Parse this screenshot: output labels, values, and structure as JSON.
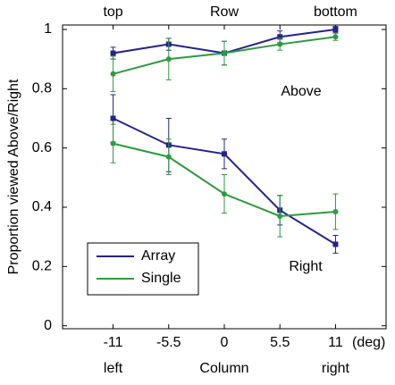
{
  "chart_data": {
    "type": "line",
    "ylabel": "Proportion viewed Above/Right",
    "xlabel": "(deg)",
    "top_labels": [
      "top",
      "Row",
      "bottom"
    ],
    "bottom_labels": [
      "left",
      "Column",
      "right"
    ],
    "x": [
      -11,
      -5.5,
      0,
      5.5,
      11
    ],
    "xlim": [
      -16,
      16
    ],
    "xticks": [
      -11,
      -5.5,
      0,
      5.5,
      11
    ],
    "ylim": [
      -0.01,
      1.015
    ],
    "yticks": [
      0,
      0.2,
      0.4,
      0.6,
      0.8,
      1
    ],
    "groups": [
      {
        "label": "Above",
        "series": [
          {
            "name": "Array",
            "color": "#24248a",
            "marker": "square",
            "values": [
              0.92,
              0.95,
              0.92,
              0.975,
              1.0
            ],
            "errors": [
              0.02,
              0.02,
              0.04,
              0.02,
              0.01
            ]
          },
          {
            "name": "Single",
            "color": "#2e9a3e",
            "marker": "circle",
            "values": [
              0.85,
              0.9,
              0.92,
              0.95,
              0.975
            ],
            "errors": [
              0.06,
              0.07,
              0.04,
              0.02,
              0.012
            ]
          }
        ]
      },
      {
        "label": "Right",
        "series": [
          {
            "name": "Array",
            "color": "#24248a",
            "marker": "square",
            "values": [
              0.7,
              0.61,
              0.58,
              0.39,
              0.275
            ],
            "errors": [
              0.08,
              0.09,
              0.05,
              0.05,
              0.03
            ]
          },
          {
            "name": "Single",
            "color": "#2e9a3e",
            "marker": "circle",
            "values": [
              0.615,
              0.57,
              0.445,
              0.37,
              0.385
            ],
            "errors": [
              0.065,
              0.06,
              0.065,
              0.07,
              0.06
            ]
          }
        ]
      }
    ]
  }
}
